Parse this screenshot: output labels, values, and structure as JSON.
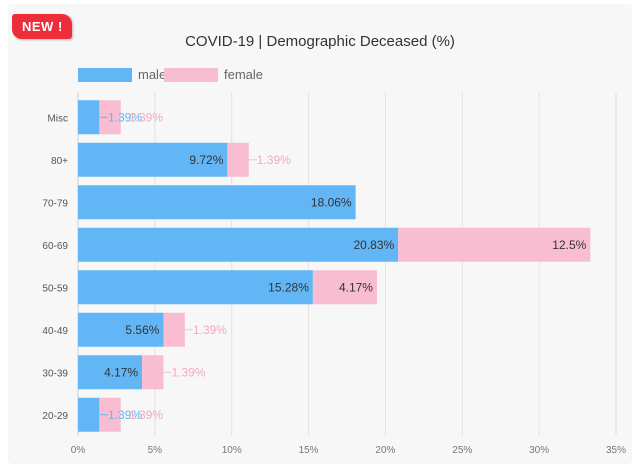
{
  "badge": {
    "label": "NEW !"
  },
  "chart_data": {
    "type": "bar",
    "orientation": "horizontal",
    "stacked": true,
    "title": "COVID-19  |  Demographic Deceased (%)",
    "categories": [
      "Misc",
      "80+",
      "70-79",
      "60-69",
      "50-59",
      "40-49",
      "30-39",
      "20-29"
    ],
    "series": [
      {
        "name": "male",
        "color": "#63b6f5",
        "values": [
          1.39,
          9.72,
          18.06,
          20.83,
          15.28,
          5.56,
          4.17,
          1.39
        ],
        "labels": [
          "1.39%",
          "9.72%",
          "18.06%",
          "20.83%",
          "15.28%",
          "5.56%",
          "4.17%",
          "1.39%"
        ]
      },
      {
        "name": "female",
        "color": "#f8bdd0",
        "values": [
          1.39,
          1.39,
          0,
          12.5,
          4.17,
          1.39,
          1.39,
          1.39
        ],
        "labels": [
          "1.39%",
          "1.39%",
          "",
          "12.5%",
          "4.17%",
          "1.39%",
          "1.39%",
          "1.39%"
        ]
      }
    ],
    "xlim": [
      0,
      35
    ],
    "xticks": [
      "0%",
      "5%",
      "10%",
      "15%",
      "20%",
      "25%",
      "30%",
      "35%"
    ],
    "legend_position": "top-left",
    "grid": true
  }
}
